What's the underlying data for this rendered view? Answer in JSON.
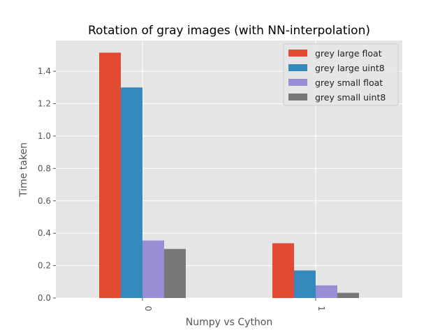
{
  "chart_data": {
    "type": "bar",
    "title": "Rotation of gray images (with NN-interpolation)",
    "xlabel": "Numpy vs Cython",
    "ylabel": "Time taken",
    "categories": [
      "0",
      "1"
    ],
    "series": [
      {
        "name": "grey large float",
        "color": "#E24A33",
        "values": [
          1.515,
          0.338
        ]
      },
      {
        "name": "grey large uint8",
        "color": "#348ABD",
        "values": [
          1.3,
          0.17
        ]
      },
      {
        "name": "grey small float",
        "color": "#988ED5",
        "values": [
          0.355,
          0.078
        ]
      },
      {
        "name": "grey small uint8",
        "color": "#777777",
        "values": [
          0.303,
          0.032
        ]
      }
    ],
    "ylim": [
      0,
      1.59
    ],
    "yticks": [
      "0.0",
      "0.2",
      "0.4",
      "0.6",
      "0.8",
      "1.0",
      "1.2",
      "1.4"
    ],
    "grid": true,
    "legend": "top-right",
    "style": {
      "plot_background": "#E5E5E5",
      "grid_color": "#FFFFFF"
    }
  }
}
